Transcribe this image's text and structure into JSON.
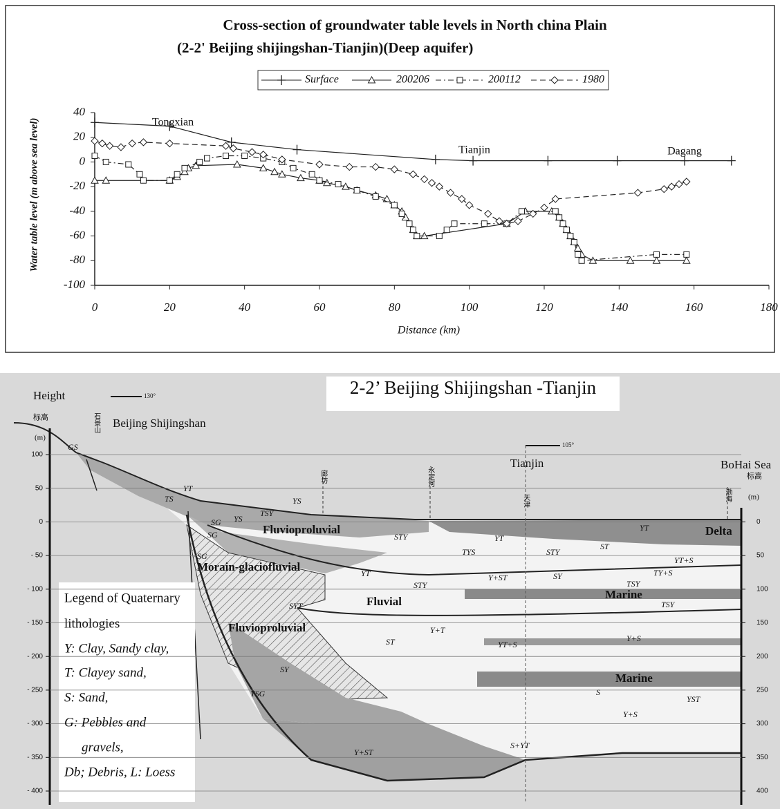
{
  "chart_data": {
    "type": "line",
    "title": "Cross-section of groundwater table levels in North china Plain",
    "subtitle": "(2-2' Beijing shijingshan-Tianjin)(Deep aquifer)",
    "x_label": "Distance (km)",
    "y_label": "Water table level (m above sea level)",
    "annotations": [
      "Tongxian",
      "Tianjin",
      "Dagang"
    ],
    "xlim": [
      0,
      180
    ],
    "xticks": [
      0,
      20,
      40,
      60,
      80,
      100,
      120,
      140,
      160,
      180
    ],
    "ylim": [
      -100,
      40
    ],
    "yticks": [
      -100,
      -80,
      -60,
      -40,
      -20,
      0,
      20,
      40
    ],
    "grid": false,
    "series": [
      {
        "name": "Surface",
        "color": "#222222",
        "marker": "plus",
        "line_style": "solid",
        "x": [
          0,
          20,
          36.5,
          54,
          91,
          101,
          121,
          139.5,
          157.5,
          170
        ],
        "values": [
          32,
          29,
          16,
          10,
          2,
          1,
          1,
          1,
          1,
          1
        ]
      },
      {
        "name": "200206",
        "color": "#222222",
        "marker": "triangle",
        "line_style": "solid",
        "x": [
          0,
          3,
          20,
          22,
          24,
          25,
          27,
          38,
          45,
          48,
          50,
          55,
          60,
          62,
          67,
          70,
          75,
          78,
          80,
          82,
          83,
          85,
          86,
          88,
          110,
          115,
          122,
          124,
          125,
          126,
          127,
          128,
          129,
          130,
          133,
          143,
          150,
          158
        ],
        "values": [
          -15,
          -15,
          -15,
          -12,
          -8,
          -5,
          -3,
          -2,
          -5,
          -8,
          -10,
          -13,
          -15,
          -17,
          -20,
          -23,
          -27,
          -30,
          -35,
          -40,
          -45,
          -55,
          -60,
          -60,
          -50,
          -40,
          -40,
          -45,
          -50,
          -55,
          -60,
          -65,
          -70,
          -75,
          -80,
          -80,
          -80,
          -80
        ]
      },
      {
        "name": "200112",
        "color": "#222222",
        "marker": "square",
        "line_style": "dash-dot",
        "x": [
          0,
          3,
          9,
          12,
          13,
          20,
          22,
          24,
          28,
          30,
          35,
          40,
          45,
          50,
          53,
          58,
          60,
          65,
          70,
          75,
          80,
          82,
          84,
          85,
          86,
          92,
          94,
          96,
          104,
          110,
          114,
          123,
          124,
          125,
          126,
          127,
          128,
          129,
          130,
          150,
          158
        ],
        "values": [
          5,
          0,
          -2,
          -10,
          -15,
          -15,
          -10,
          -5,
          0,
          3,
          5,
          5,
          3,
          0,
          -5,
          -10,
          -15,
          -18,
          -23,
          -28,
          -35,
          -42,
          -50,
          -55,
          -60,
          -60,
          -55,
          -50,
          -50,
          -50,
          -40,
          -40,
          -45,
          -50,
          -55,
          -60,
          -65,
          -75,
          -80,
          -75,
          -75
        ]
      },
      {
        "name": "1980",
        "color": "#222222",
        "marker": "diamond",
        "line_style": "dash",
        "x": [
          0,
          2,
          4,
          7,
          10,
          13,
          20,
          35,
          37,
          42,
          45,
          50,
          60,
          68,
          75,
          80,
          85,
          88,
          90,
          92,
          95,
          98,
          100,
          105,
          108,
          110,
          113,
          117,
          120,
          123,
          145,
          152,
          154,
          156,
          158
        ],
        "values": [
          17,
          15,
          13,
          12,
          15,
          16,
          15,
          13,
          11,
          8,
          6,
          2,
          -2,
          -4,
          -4,
          -6,
          -10,
          -14,
          -17,
          -20,
          -25,
          -30,
          -35,
          -42,
          -48,
          -50,
          -48,
          -42,
          -37,
          -30,
          -25,
          -22,
          -20,
          -18,
          -16
        ]
      }
    ]
  },
  "cross_section": {
    "title": "2-2’ Beijing Shijingshan -Tianjin",
    "height_label": "Height",
    "unit_cn": "标高",
    "unit": "(m)",
    "bearings": [
      "130°",
      "105°"
    ],
    "places": [
      "Beijing Shijingshan",
      "Tianjin",
      "BoHai Sea"
    ],
    "places_cn": [
      "石景山",
      "廊坊",
      "永定河",
      "天津",
      "渤海"
    ],
    "left_ticks": [
      "100",
      "50",
      "0",
      "- 50",
      "- 100",
      "- 150",
      "- 200",
      "- 250",
      "- 300",
      "- 350",
      "- 400"
    ],
    "right_ticks": [
      "0",
      "50",
      "100",
      "150",
      "200",
      "250",
      "300",
      "350",
      "400"
    ],
    "layers": [
      "Fluvioproluvial",
      "Morain-glaciofluvial",
      "Fluvial",
      "Fluvioproluvial",
      "Marine",
      "Marine",
      "Delta"
    ],
    "lithology_labels": [
      "GS",
      "YT",
      "TS",
      "YS",
      "TSY",
      "SG",
      "SG",
      "SG",
      "YS",
      "STY",
      "TYS",
      "YT",
      "STY",
      "YT",
      "ST",
      "YT+S",
      "TY+S",
      "TSY",
      "YT",
      "STY",
      "Y+ST",
      "SY",
      "TSY",
      "SYT",
      "ST",
      "Y+T",
      "YT+S",
      "Y+S",
      "SY",
      "YSG",
      "S",
      "YST",
      "Y+S",
      "S+YT",
      "Y+ST"
    ],
    "legend": [
      "Legend of Quaternary",
      "lithologies",
      "Y: Clay, Sandy clay,",
      "T: Clayey sand,",
      "S: Sand,",
      "G: Pebbles and",
      "gravels,",
      "Db; Debris, L: Loess"
    ]
  }
}
